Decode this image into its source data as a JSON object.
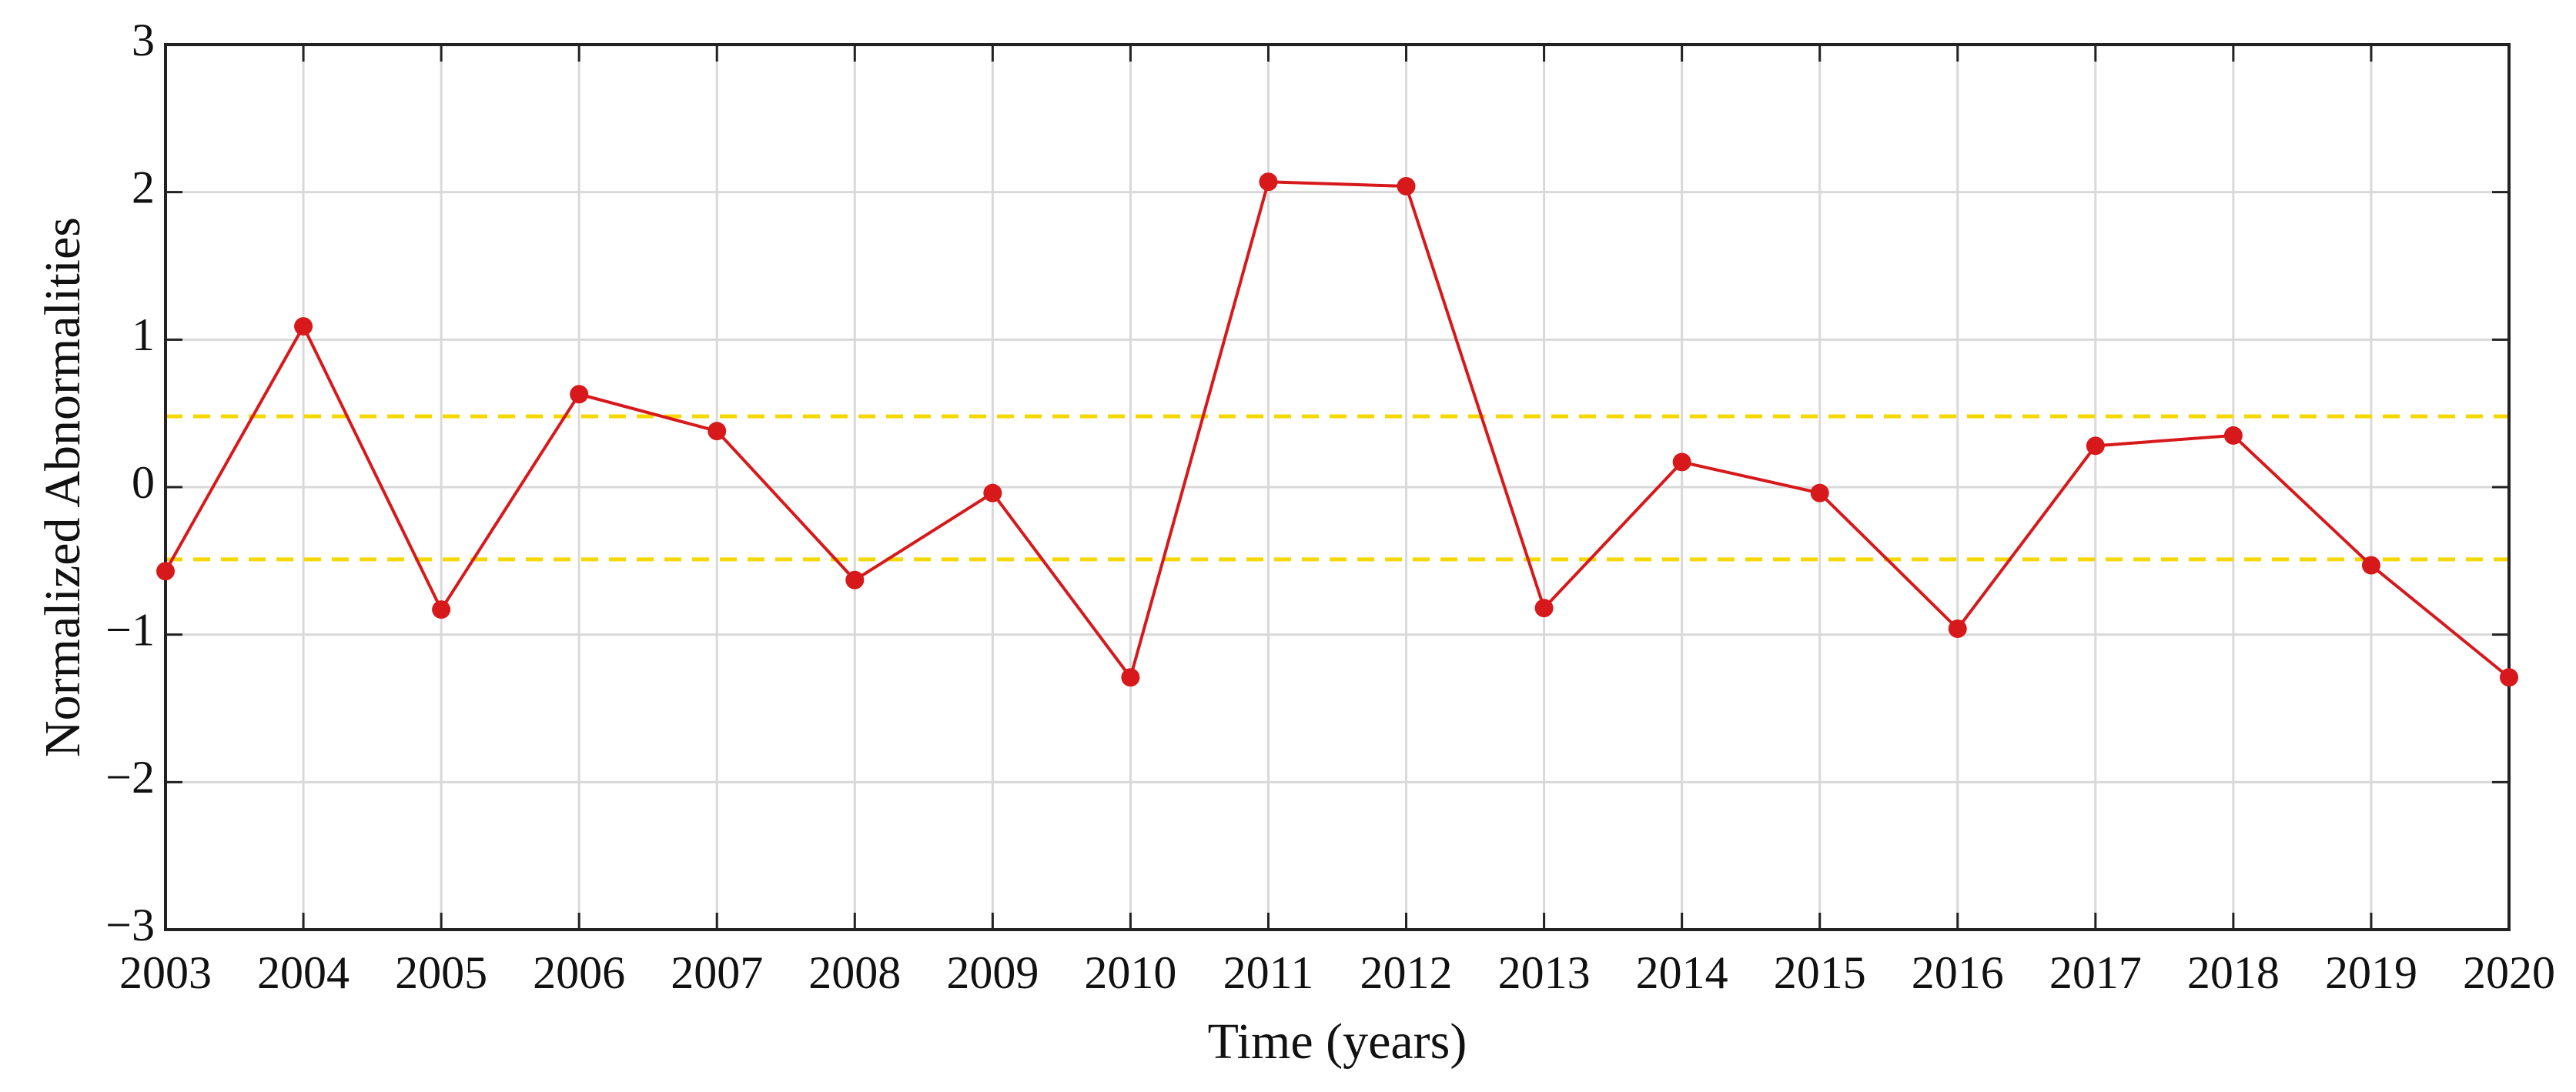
{
  "chart_data": {
    "type": "line",
    "xlabel": "Time (years)",
    "ylabel": "Normalized Abnormalities",
    "x": [
      2003,
      2004,
      2005,
      2006,
      2007,
      2008,
      2009,
      2010,
      2011,
      2012,
      2013,
      2014,
      2015,
      2016,
      2017,
      2018,
      2019,
      2020
    ],
    "series": [
      {
        "color": "#d7191c",
        "values": [
          -0.57,
          1.09,
          -0.83,
          0.63,
          0.38,
          -0.63,
          -0.04,
          -1.29,
          2.07,
          2.04,
          -0.82,
          0.17,
          -0.04,
          -0.96,
          0.28,
          0.35,
          -0.53,
          -1.29
        ]
      }
    ],
    "reference_lines": [
      {
        "value": 0.48,
        "color": "#f5d800",
        "style": "dashed"
      },
      {
        "value": -0.49,
        "color": "#f5d800",
        "style": "dashed"
      }
    ],
    "xlim": [
      2003,
      2020
    ],
    "xticks": [
      2003,
      2004,
      2005,
      2006,
      2007,
      2008,
      2009,
      2010,
      2011,
      2012,
      2013,
      2014,
      2015,
      2016,
      2017,
      2018,
      2019,
      2020
    ],
    "ylim": [
      -3,
      3
    ],
    "yticks": [
      {
        "value": -3,
        "label": "−3"
      },
      {
        "value": -2,
        "label": "−2"
      },
      {
        "value": -1,
        "label": "−1"
      },
      0,
      1,
      2,
      3
    ],
    "grid": true
  }
}
